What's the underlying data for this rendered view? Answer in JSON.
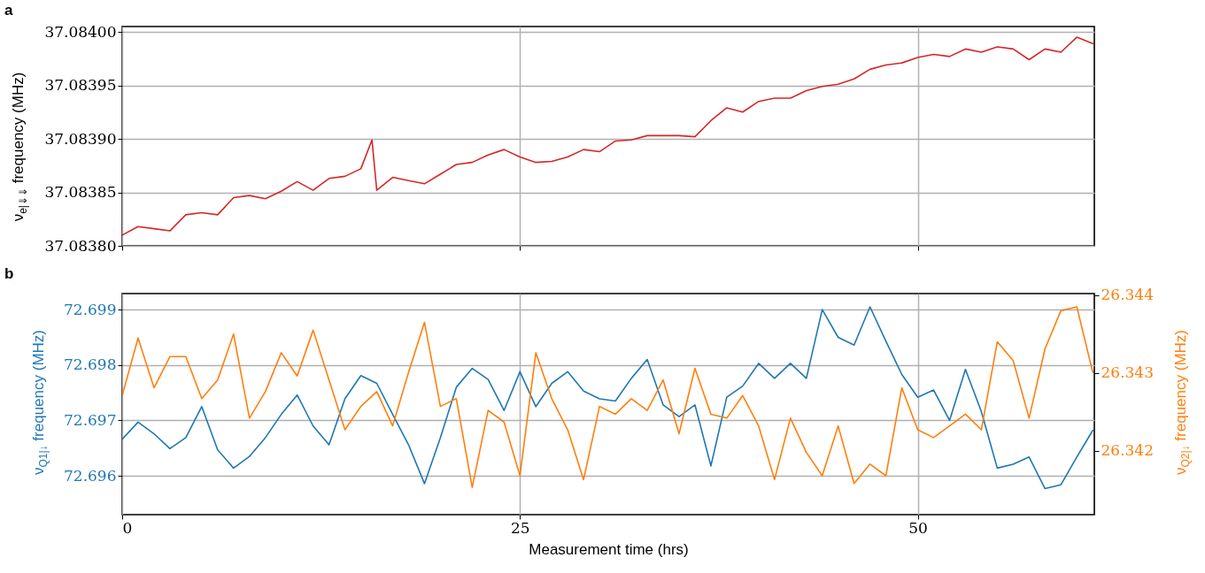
{
  "chart_data": [
    {
      "type": "line",
      "title": "a",
      "ylabel": "ν$_{e|⇓⇓}$ frequency (MHz)",
      "xlim": [
        0,
        61.1
      ],
      "xticks": [
        0,
        25,
        50
      ],
      "ylim": [
        37.0838,
        37.084005
      ],
      "yticks": [
        {
          "value": 37.0838,
          "label": "37.08380"
        },
        {
          "value": 37.08385,
          "label": "37.08385"
        },
        {
          "value": 37.0839,
          "label": "37.08390"
        },
        {
          "value": 37.08395,
          "label": "37.08395"
        },
        {
          "value": 37.084,
          "label": "37.08400"
        }
      ],
      "grid": true,
      "tick_labels": "y",
      "series": [
        {
          "color": "#d62728",
          "x": [
            0,
            1,
            2,
            3,
            4,
            5,
            6,
            7,
            8,
            9,
            10,
            11,
            12,
            13,
            14,
            15,
            15.7,
            16,
            17,
            18,
            19,
            20,
            21,
            22,
            23,
            24,
            25,
            26,
            27,
            28,
            29,
            30,
            31,
            32,
            33,
            34,
            35,
            36,
            37,
            38,
            39,
            40,
            41,
            42,
            43,
            44,
            45,
            46,
            47,
            48,
            49,
            50,
            51,
            52,
            53,
            54,
            55,
            56,
            57,
            58,
            59,
            60,
            61
          ],
          "values": [
            37.08381,
            37.083818,
            37.083816,
            37.083814,
            37.083829,
            37.083831,
            37.083829,
            37.083845,
            37.083847,
            37.083844,
            37.083851,
            37.08386,
            37.083852,
            37.083863,
            37.083865,
            37.083872,
            37.083899,
            37.083852,
            37.083864,
            37.083861,
            37.083858,
            37.083867,
            37.083876,
            37.083878,
            37.083885,
            37.08389,
            37.083883,
            37.083878,
            37.083879,
            37.083883,
            37.08389,
            37.083888,
            37.083898,
            37.083899,
            37.083903,
            37.083903,
            37.083903,
            37.083902,
            37.083917,
            37.083929,
            37.083925,
            37.083935,
            37.083938,
            37.083938,
            37.083945,
            37.083949,
            37.083951,
            37.083956,
            37.083965,
            37.083969,
            37.083971,
            37.083976,
            37.083979,
            37.083977,
            37.083984,
            37.083981,
            37.083986,
            37.083984,
            37.083974,
            37.083984,
            37.083981,
            37.083995,
            37.083989
          ]
        }
      ]
    },
    {
      "type": "line",
      "title": "b",
      "xlabel": "Measurement time (hrs)",
      "ylabel": "ν$_{Q1|↓}$ frequency (MHz)",
      "y2label": "ν$_{Q2|↓}$ frequency (MHz)",
      "x": [
        0,
        1,
        2,
        3,
        4,
        5,
        6,
        7,
        8,
        9,
        10,
        11,
        12,
        13,
        14,
        15,
        16,
        17,
        18,
        19,
        20,
        21,
        22,
        23,
        24,
        25,
        26,
        27,
        28,
        29,
        30,
        31,
        32,
        33,
        34,
        35,
        36,
        37,
        38,
        39,
        40,
        41,
        42,
        43,
        44,
        45,
        46,
        47,
        48,
        49,
        50,
        51,
        52,
        53,
        54,
        55,
        56,
        57,
        58,
        59,
        60,
        61
      ],
      "xlim": [
        0,
        61.1
      ],
      "xticks": [
        0,
        25,
        50
      ],
      "ylim": [
        72.6953,
        72.69929
      ],
      "yticks": [
        72.696,
        72.697,
        72.698,
        72.699
      ],
      "y2lim": [
        26.34118,
        26.34402
      ],
      "y2ticks": [
        26.342,
        26.343,
        26.344
      ],
      "grid": true,
      "series": [
        {
          "color": "#1f77b4",
          "values": [
            72.69666,
            72.69697,
            72.69676,
            72.69649,
            72.69669,
            72.69725,
            72.69647,
            72.69614,
            72.69635,
            72.69669,
            72.69711,
            72.69746,
            72.6969,
            72.69656,
            72.69739,
            72.69781,
            72.69767,
            72.69711,
            72.69656,
            72.69586,
            72.69669,
            72.6976,
            72.69794,
            72.69774,
            72.69718,
            72.69788,
            72.69725,
            72.69767,
            72.69788,
            72.69753,
            72.69739,
            72.69735,
            72.69776,
            72.6981,
            72.69728,
            72.69707,
            72.69728,
            72.69618,
            72.69742,
            72.69762,
            72.69803,
            72.69776,
            72.69803,
            72.69776,
            72.699,
            72.6985,
            72.69836,
            72.69905,
            72.69843,
            72.69783,
            72.69742,
            72.69755,
            72.697,
            72.69792,
            72.69716,
            72.69614,
            72.69621,
            72.69634,
            72.69577,
            72.69584,
            72.69634,
            72.69682
          ]
        },
        {
          "color": "#ff7f0e",
          "axis": "y2",
          "values": [
            26.34271,
            26.34345,
            26.34281,
            26.34321,
            26.34321,
            26.34267,
            26.34291,
            26.3435,
            26.34242,
            26.34276,
            26.34326,
            26.34296,
            26.34355,
            26.34291,
            26.34227,
            26.34257,
            26.34276,
            26.34232,
            26.34301,
            26.34365,
            26.34257,
            26.34267,
            26.34153,
            26.34252,
            26.34237,
            26.34168,
            26.34326,
            26.34267,
            26.34227,
            26.34163,
            26.34257,
            26.34247,
            26.34267,
            26.34252,
            26.34291,
            26.34222,
            26.34306,
            26.34247,
            26.34242,
            26.34271,
            26.34232,
            26.34163,
            26.34242,
            26.34198,
            26.34168,
            26.34232,
            26.34158,
            26.34183,
            26.34168,
            26.34281,
            26.34227,
            26.34217,
            26.34232,
            26.34247,
            26.34227,
            26.3434,
            26.34316,
            26.34242,
            26.34331,
            26.3438,
            26.34385,
            26.34301
          ]
        }
      ]
    }
  ]
}
